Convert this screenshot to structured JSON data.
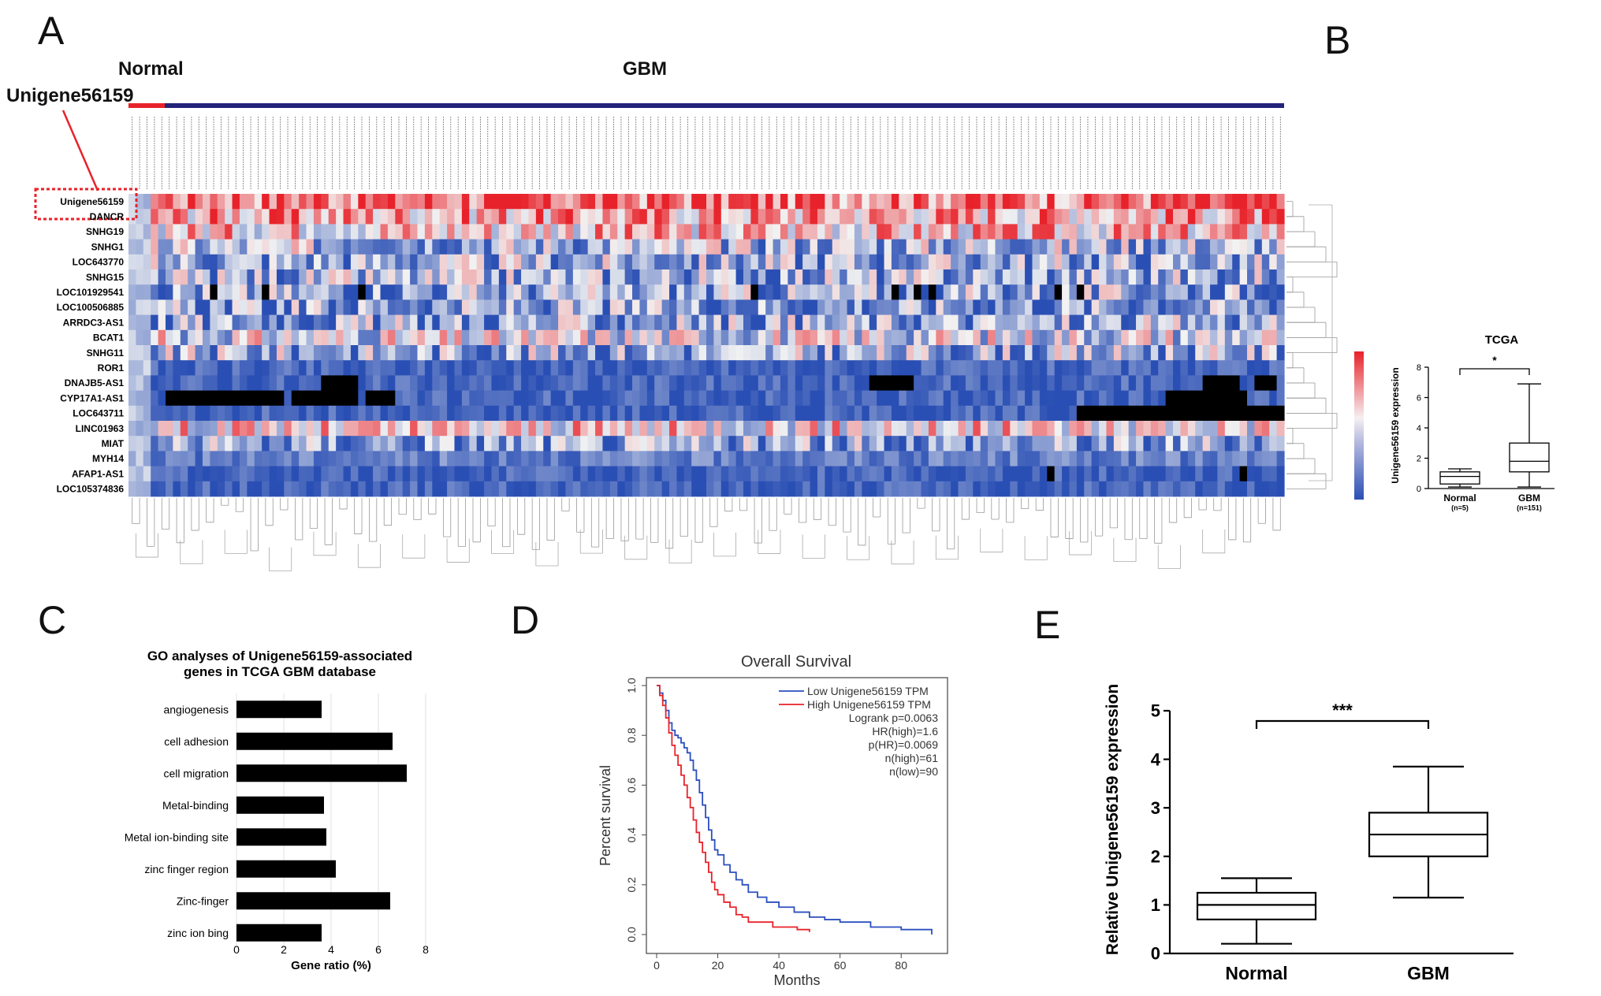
{
  "panels": {
    "A": {
      "letter": "A",
      "group_normal": "Normal",
      "group_gbm": "GBM",
      "highlight_label": "Unigene56159",
      "genes": [
        "Unigene56159",
        "DANCR",
        "SNHG19",
        "SNHG1",
        "LOC643770",
        "SNHG15",
        "LOC101929541",
        "LOC100506885",
        "ARRDC3-AS1",
        "BCAT1",
        "SNHG11",
        "ROR1",
        "DNAJB5-AS1",
        "CYP17A1-AS1",
        "LOC643711",
        "LINC01963",
        "MIAT",
        "MYH14",
        "AFAP1-AS1",
        "LOC105374836"
      ],
      "colors": {
        "normal_bar": "#e8222a",
        "gbm_bar": "#24237a",
        "high": "#e8222a",
        "mid": "#f2f2f2",
        "low": "#2a4fb4",
        "missing": "#000000"
      }
    },
    "B": {
      "letter": "B",
      "chart_data": {
        "type": "box",
        "title": "TCGA",
        "ylabel": "Unigene56159 expression",
        "ylim": [
          0,
          8
        ],
        "yticks": [
          0,
          2,
          4,
          6,
          8
        ],
        "categories": [
          "Normal",
          "GBM"
        ],
        "n_labels": [
          "(n=5)",
          "(n=151)"
        ],
        "boxes": [
          {
            "name": "Normal",
            "min": 0.1,
            "q1": 0.3,
            "median": 0.8,
            "q3": 1.1,
            "max": 1.3
          },
          {
            "name": "GBM",
            "min": 0.1,
            "q1": 1.1,
            "median": 1.8,
            "q3": 3.0,
            "max": 6.9
          }
        ],
        "significance": "*"
      }
    },
    "C": {
      "letter": "C",
      "chart_data": {
        "type": "bar",
        "orientation": "horizontal",
        "title_line1": "GO analyses of Unigene56159-associated",
        "title_line2": "genes in TCGA GBM database",
        "xlabel": "Gene ratio (%)",
        "xlim": [
          0,
          8
        ],
        "xticks": [
          0,
          2,
          4,
          6,
          8
        ],
        "categories": [
          "angiogenesis",
          "cell adhesion",
          "cell migration",
          "Metal-binding",
          "Metal ion-binding site",
          "zinc finger region",
          "Zinc-finger",
          "zinc ion bing"
        ],
        "values": [
          3.6,
          6.6,
          7.2,
          3.7,
          3.8,
          4.2,
          6.5,
          3.6
        ]
      }
    },
    "D": {
      "letter": "D",
      "chart_data": {
        "type": "line",
        "title": "Overall Survival",
        "xlabel": "Months",
        "ylabel": "Percent survival",
        "xlim": [
          0,
          90
        ],
        "ylim": [
          0,
          1
        ],
        "xticks": [
          0,
          20,
          40,
          60,
          80
        ],
        "yticks": [
          0.0,
          0.2,
          0.4,
          0.6,
          0.8,
          1.0
        ],
        "series": [
          {
            "name": "Low Unigene56159 TPM",
            "color": "#2b4fbf",
            "x": [
              0,
              1,
              2,
              3,
              4,
              5,
              6,
              7,
              8,
              9,
              10,
              11,
              12,
              13,
              14,
              15,
              16,
              17,
              18,
              19,
              20,
              22,
              24,
              26,
              28,
              30,
              33,
              36,
              40,
              45,
              50,
              55,
              60,
              70,
              80,
              90
            ],
            "y": [
              1.0,
              0.97,
              0.94,
              0.9,
              0.85,
              0.82,
              0.8,
              0.79,
              0.77,
              0.75,
              0.73,
              0.7,
              0.66,
              0.62,
              0.57,
              0.52,
              0.47,
              0.42,
              0.38,
              0.34,
              0.32,
              0.28,
              0.25,
              0.22,
              0.2,
              0.17,
              0.15,
              0.13,
              0.11,
              0.09,
              0.07,
              0.06,
              0.05,
              0.03,
              0.02,
              0.0
            ]
          },
          {
            "name": "High Unigene56159 TPM",
            "color": "#e8232a",
            "x": [
              0,
              1,
              2,
              3,
              4,
              5,
              6,
              7,
              8,
              9,
              10,
              11,
              12,
              13,
              14,
              15,
              16,
              17,
              18,
              19,
              20,
              22,
              24,
              26,
              28,
              30,
              34,
              38,
              42,
              46,
              50
            ],
            "y": [
              1.0,
              0.96,
              0.92,
              0.87,
              0.81,
              0.76,
              0.72,
              0.68,
              0.64,
              0.6,
              0.55,
              0.51,
              0.46,
              0.41,
              0.37,
              0.33,
              0.29,
              0.25,
              0.21,
              0.18,
              0.16,
              0.13,
              0.11,
              0.08,
              0.07,
              0.05,
              0.05,
              0.03,
              0.03,
              0.02,
              0.01
            ]
          }
        ],
        "stats": [
          "Logrank p=0.0063",
          "HR(high)=1.6",
          "p(HR)=0.0069",
          "n(high)=61",
          "n(low)=90"
        ]
      }
    },
    "E": {
      "letter": "E",
      "chart_data": {
        "type": "box",
        "ylabel": "Relative Unigene56159 expression",
        "ylim": [
          0,
          5
        ],
        "yticks": [
          0,
          1,
          2,
          3,
          4,
          5
        ],
        "categories": [
          "Normal",
          "GBM"
        ],
        "boxes": [
          {
            "name": "Normal",
            "min": 0.2,
            "q1": 0.7,
            "median": 1.0,
            "q3": 1.25,
            "max": 1.55
          },
          {
            "name": "GBM",
            "min": 1.15,
            "q1": 2.0,
            "median": 2.45,
            "q3": 2.9,
            "max": 3.85
          }
        ],
        "significance": "***"
      }
    }
  }
}
